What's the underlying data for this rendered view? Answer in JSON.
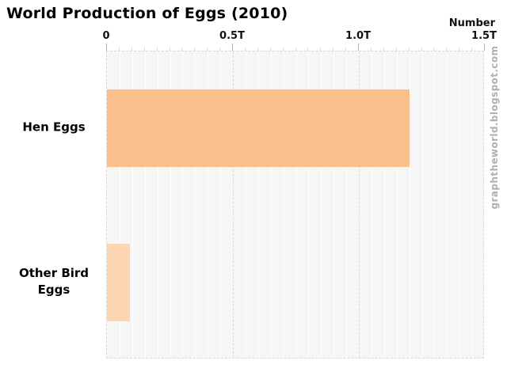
{
  "chart_data": {
    "type": "bar",
    "orientation": "horizontal",
    "title": "World Production of Eggs (2010)",
    "unit_label": "Number",
    "categories": [
      "Hen Eggs",
      "Other Bird Eggs"
    ],
    "values": [
      1.2,
      0.09
    ],
    "value_unit": "T",
    "xlim": [
      0,
      1.5
    ],
    "x_ticks": [
      {
        "value": 0,
        "label": "0"
      },
      {
        "value": 0.5,
        "label": "0.5T"
      },
      {
        "value": 1.0,
        "label": "1.0T"
      },
      {
        "value": 1.5,
        "label": "1.5T"
      }
    ],
    "minor_step": 0.05,
    "grid": true,
    "axis_position": "top",
    "bar_colors": [
      "#f9c08b",
      "#fcd6b2"
    ],
    "plot_background": "#f6f6f6"
  },
  "watermark": "graphtheworld.blogspot.com"
}
